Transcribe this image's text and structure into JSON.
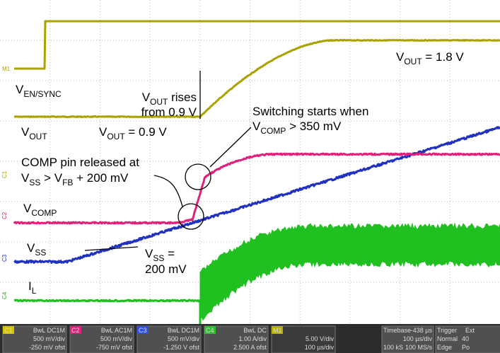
{
  "markers": {
    "m1": "M1",
    "c1": "C1",
    "c2": "C2",
    "c3": "C3",
    "c4": "C4"
  },
  "labels": {
    "ven": {
      "main": "V",
      "sub": "EN/SYNC"
    },
    "vout": {
      "main": "V",
      "sub": "OUT"
    },
    "vcomp": {
      "main": "V",
      "sub": "COMP"
    },
    "vss": {
      "main": "V",
      "sub": "SS"
    },
    "il": {
      "main": "I",
      "sub": "L"
    }
  },
  "annotations": {
    "vout09": {
      "main": "V",
      "sub": "OUT",
      "rest": " = 0.9 V"
    },
    "vout18": {
      "main": "V",
      "sub": "OUT",
      "rest": " = 1.8 V"
    },
    "rises": {
      "main": "V",
      "sub": "OUT",
      "rest": " rises",
      "line2": "from 0.9 V"
    },
    "switching": {
      "line1": "Switching starts when",
      "main": "V",
      "sub": "COMP",
      "rest": " > 350 mV"
    },
    "comp": {
      "line1": "COMP pin released at",
      "a": "V",
      "a_sub": "SS",
      "b": " > V",
      "b_sub": "FB",
      "rest": " + 200 mV"
    },
    "vss200": {
      "main": "V",
      "sub": "SS",
      "rest": " =",
      "line2": "200 mV"
    }
  },
  "status_bar": {
    "channels": [
      {
        "name": "C1",
        "coupling": "BwL DC1M",
        "scale": "500 mV/div",
        "offset": "-250 mV ofst"
      },
      {
        "name": "C2",
        "coupling": "BwL AC1M",
        "scale": "500 mV/div",
        "offset": "-750 mV ofst"
      },
      {
        "name": "C3",
        "coupling": "BwL DC1M",
        "scale": "500 mV/div",
        "offset": "-1.250 V ofst"
      },
      {
        "name": "C4",
        "coupling": "BwL DC",
        "scale": "1.00 A/div",
        "offset": "2.500 A ofst"
      },
      {
        "name": "M1",
        "coupling": "",
        "scale": "5.00 V/div",
        "offset": "100 µs/div"
      }
    ],
    "timebase": {
      "label": "Timebase",
      "delay": "-438 µs",
      "scale": "100 µs/div",
      "samples": "100 kS",
      "rate": "100 MS/s"
    },
    "trigger": {
      "label": "Trigger",
      "source": "Ext",
      "mode": "Normal",
      "level": "40",
      "type": "Edge",
      "slope": "Po"
    }
  }
}
